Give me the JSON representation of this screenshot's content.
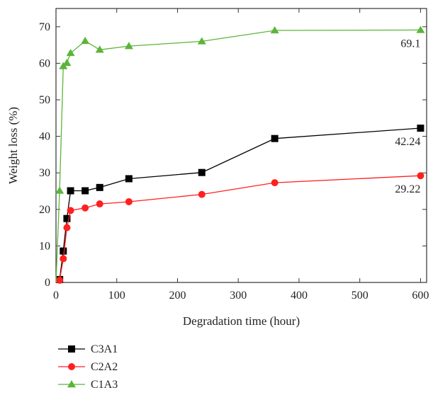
{
  "chart_data": {
    "type": "line",
    "title": "",
    "xlabel": "Degradation time (hour)",
    "ylabel": "Weight loss (%)",
    "xlim": [
      0,
      610
    ],
    "ylim": [
      0,
      75
    ],
    "xticks": [
      0,
      100,
      200,
      300,
      400,
      500,
      600
    ],
    "yticks": [
      0,
      10,
      20,
      30,
      40,
      50,
      60,
      70
    ],
    "grid": false,
    "legend_position": "bottom-left",
    "series": [
      {
        "name": "C3A1",
        "color": "#000000",
        "marker": "square",
        "x": [
          0,
          6,
          12,
          18,
          24,
          48,
          72,
          120,
          240,
          360,
          600
        ],
        "y": [
          0,
          0.8,
          8.6,
          17.5,
          25.1,
          25.1,
          26.0,
          28.4,
          30.1,
          39.4,
          42.24
        ]
      },
      {
        "name": "C2A2",
        "color": "#ff2020",
        "marker": "circle",
        "x": [
          0,
          6,
          12,
          18,
          24,
          48,
          72,
          120,
          240,
          360,
          600
        ],
        "y": [
          0,
          0.6,
          6.5,
          15.0,
          19.7,
          20.4,
          21.5,
          22.1,
          24.1,
          27.3,
          29.22
        ]
      },
      {
        "name": "C1A3",
        "color": "#5bb539",
        "marker": "triangle",
        "x": [
          0,
          6,
          12,
          18,
          24,
          48,
          72,
          120,
          240,
          360,
          600
        ],
        "y": [
          0,
          25.1,
          59.2,
          60.1,
          62.8,
          66.1,
          63.7,
          64.7,
          66.0,
          69.0,
          69.1
        ]
      }
    ],
    "annotations": [
      {
        "text": "69.1",
        "x": 600,
        "y": 69.1
      },
      {
        "text": "42.24",
        "x": 600,
        "y": 42.24
      },
      {
        "text": "29.22",
        "x": 600,
        "y": 29.22
      }
    ]
  }
}
